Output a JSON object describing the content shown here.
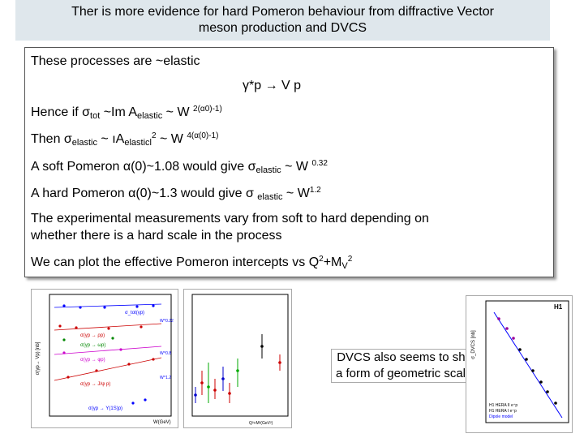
{
  "title": {
    "line1": "Ther is more evidence for hard Pomeron behaviour from diffractive Vector",
    "line2": "meson production and DVCS"
  },
  "content": {
    "intro": "These processes are ~elastic",
    "reaction": "γ*p → V p",
    "hence": {
      "a": "Hence if σ",
      "a_sub": "tot",
      "b": " ~Im A",
      "b_sub": "elastic",
      "c": " ~ W ",
      "c_sup": "2(α0)-1)"
    },
    "then": {
      "a": "Then σ",
      "a_sub": "elastic",
      "b": " ~  ıA",
      "b_sub": "elasticl",
      "b_sup": "2",
      "c": " ~ W ",
      "c_sup": "4(α(0)-1)"
    },
    "soft": {
      "a": "A soft Pomeron α(0)~1.08 would give  σ",
      "a_sub": "elastic",
      "b": " ~ W ",
      "b_sup": "0.32"
    },
    "hard": {
      "a": "A hard Pomeron α(0)~1.3 would give  σ ",
      "a_sub": "elastic",
      "b": " ~ W",
      "b_sup": "1.2"
    },
    "experimental_1": "The experimental measurements vary from soft to hard depending on",
    "experimental_2": "whether there is a hard scale in the process",
    "plot_line": {
      "a": "We can plot the effective Pomeron intercepts vs Q",
      "a_sup": "2",
      "b": "+M",
      "b_sub": "V",
      "b_sup2": "2"
    }
  },
  "plots": {
    "left": {
      "ylabel": "σ(γp→ Vp) [nb]",
      "xlabel": "W(GeV)",
      "labels": [
        "σ_tot(γp)",
        "W^0.22",
        "W^0.8",
        "W^1.2"
      ],
      "reactions": [
        "σ(γp → ρp)",
        "σ(γp → ωp)",
        "σ(γp → φp)",
        "σ(γp → J/ψ p)",
        "σ(γp → Υ(1S)p)"
      ]
    },
    "middle": {
      "xlabel": "Q²+M²(GeV²)"
    },
    "right": {
      "ylabel": "σ_DVCS [nb]",
      "tag": "H1",
      "legend": [
        "H1 HERA II e⁺p",
        "H1 HERA I e⁺p",
        "Dipole model"
      ]
    }
  },
  "dvcs_note": "DVCS also seems to show a form of geometric scaling"
}
